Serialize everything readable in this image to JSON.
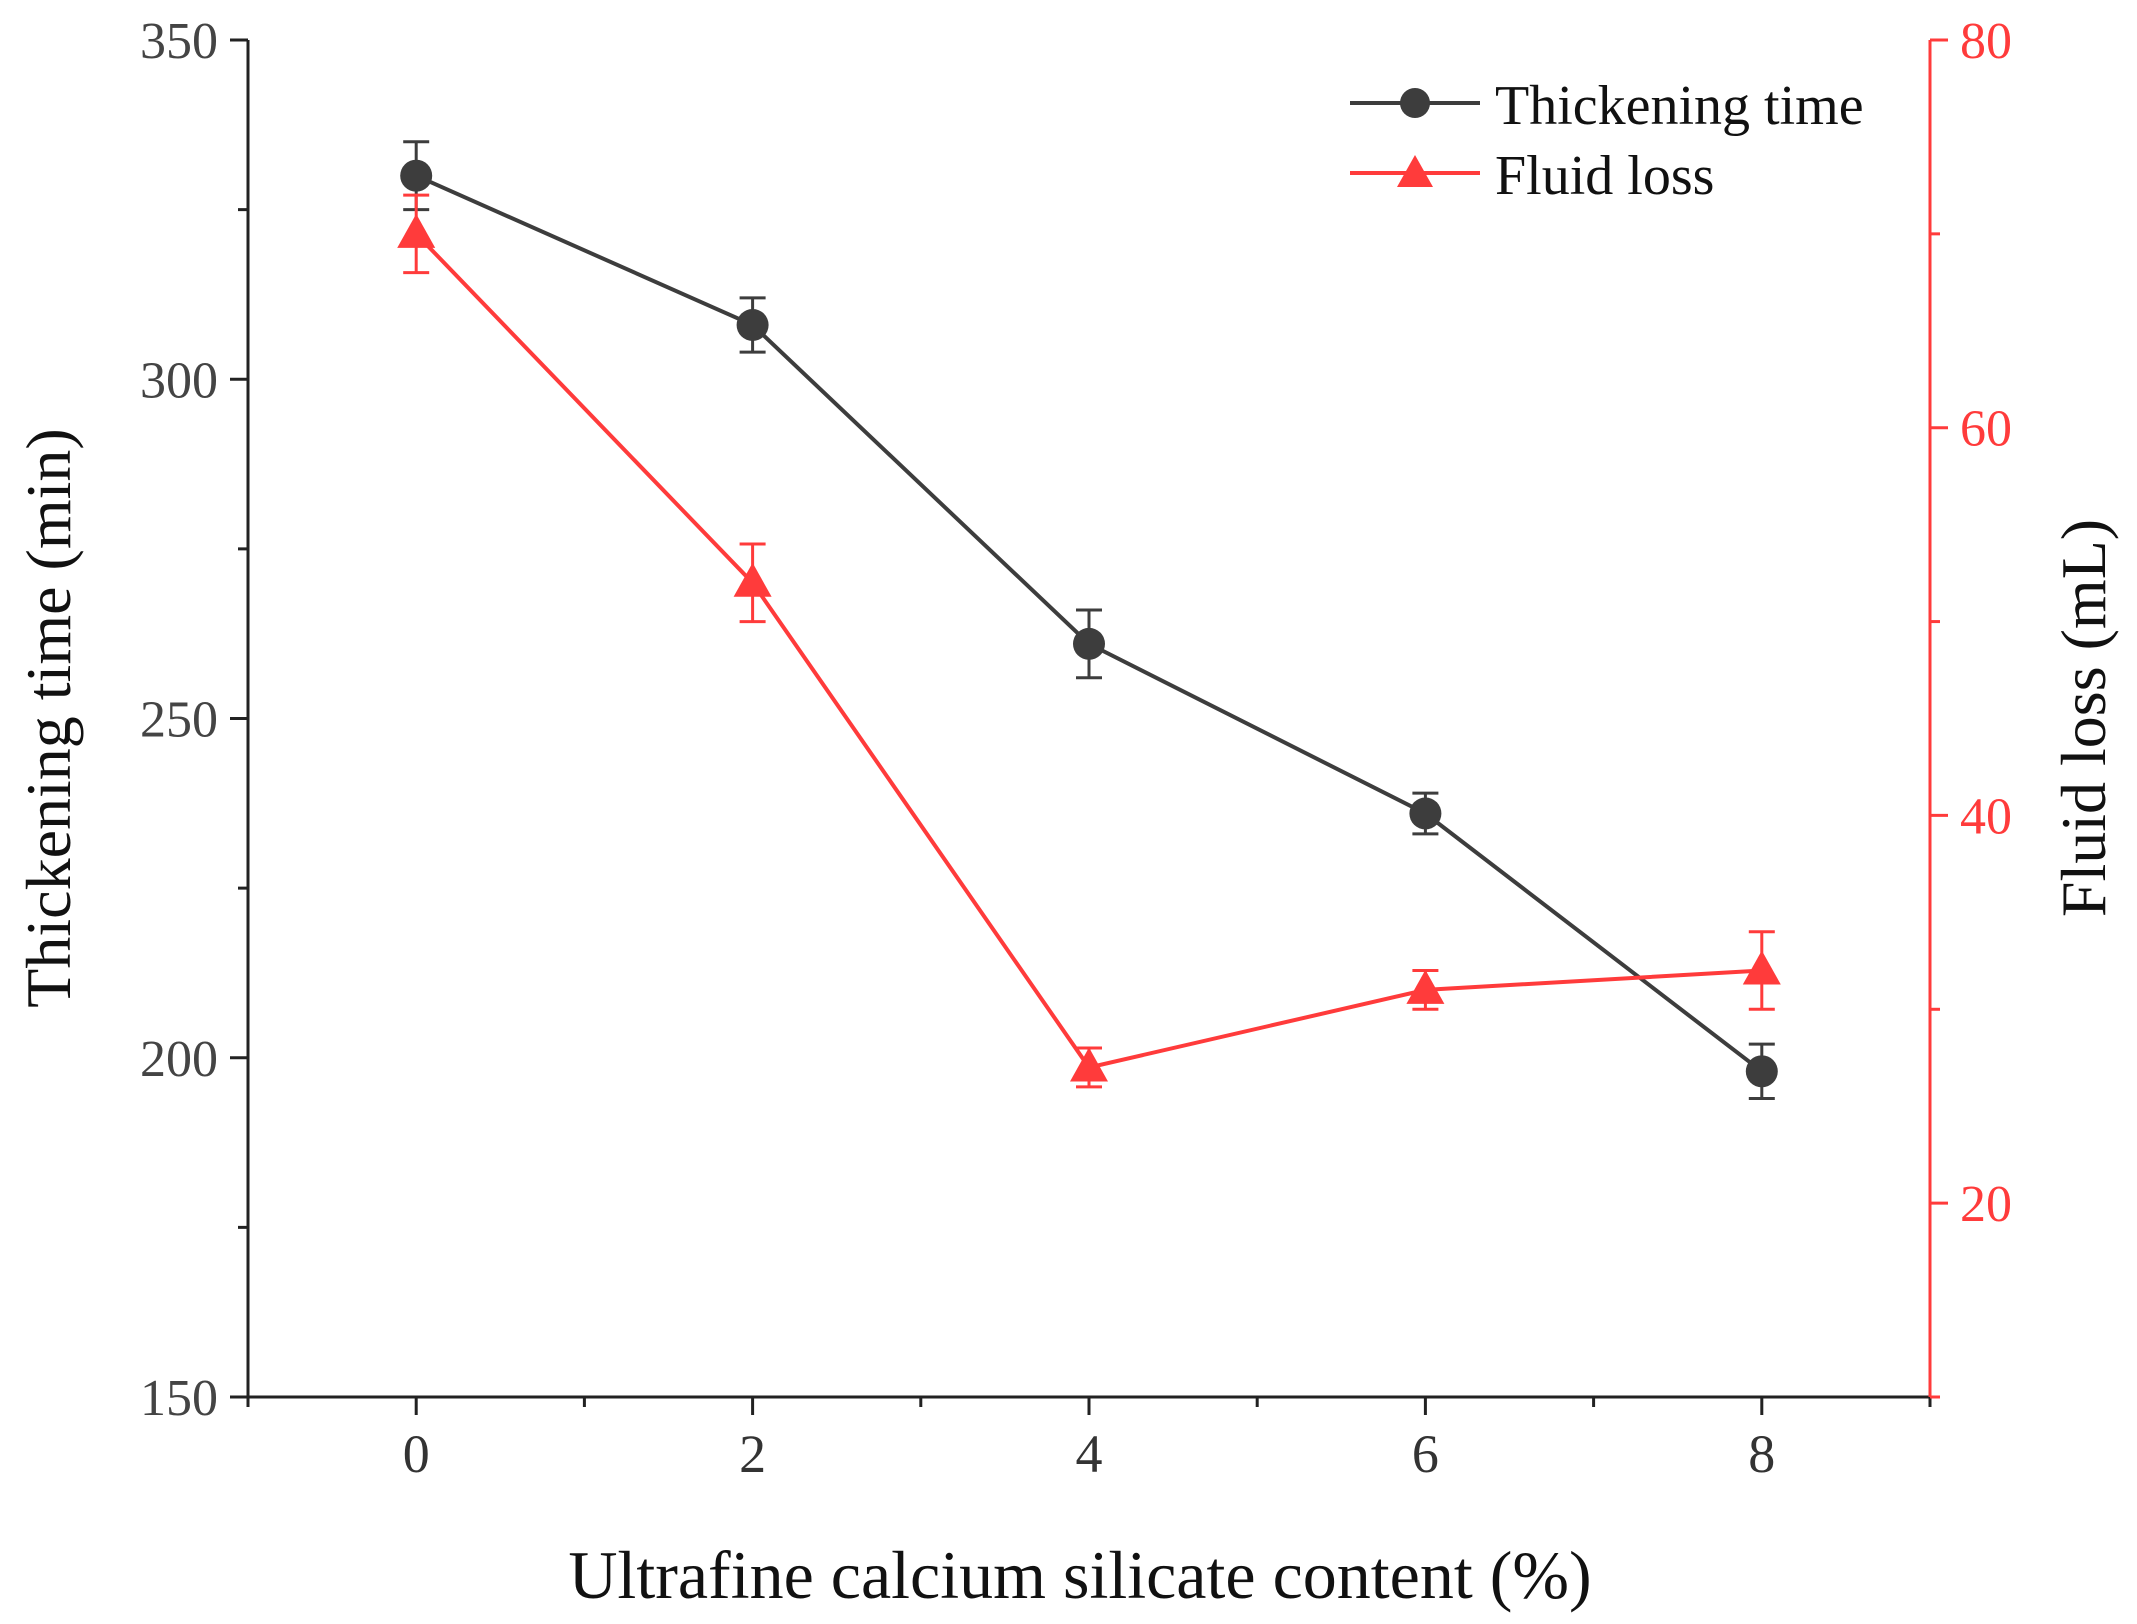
{
  "chart_data": {
    "type": "line",
    "x": [
      0,
      2,
      4,
      6,
      8
    ],
    "xlabel": "Ultrafine calcium silicate content (%)",
    "xlim": [
      -1,
      9
    ],
    "xticks": [
      0,
      2,
      4,
      6,
      8
    ],
    "xtick_labels": [
      "0",
      "2",
      "4",
      "6",
      "8"
    ],
    "left_axis": {
      "label": "Thickening time (min)",
      "ylim": [
        150,
        350
      ],
      "ticks": [
        150,
        200,
        250,
        300,
        350
      ],
      "tick_labels": [
        "150",
        "200",
        "250",
        "300",
        "350"
      ],
      "color": "#333333"
    },
    "right_axis": {
      "label": "Fluid loss (mL)",
      "ylim": [
        10,
        80
      ],
      "ticks": [
        20,
        40,
        60,
        80
      ],
      "tick_labels": [
        "20",
        "40",
        "60",
        "80"
      ],
      "color": "#ff3b3b"
    },
    "series": [
      {
        "name": "Thickening time",
        "axis": "left",
        "marker": "circle",
        "color": "#3d3d3d",
        "values": [
          330,
          308,
          261,
          236,
          198
        ],
        "errors": [
          5,
          4,
          5,
          3,
          4
        ]
      },
      {
        "name": "Fluid loss",
        "axis": "right",
        "marker": "triangle",
        "color": "#ff3b3b",
        "values": [
          70,
          52,
          27,
          31,
          32
        ],
        "errors": [
          2,
          2,
          1,
          1,
          2
        ]
      }
    ],
    "legend_position": "top-right",
    "grid": false
  }
}
